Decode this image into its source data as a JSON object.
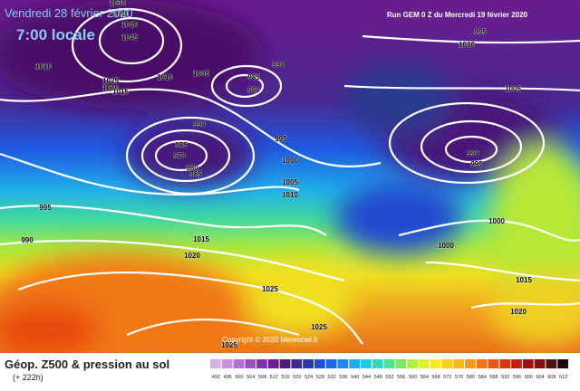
{
  "header": {
    "date": "Vendredi 28 février 2020",
    "time": "7:00 locale",
    "run": "Run GEM 0 Z du Mercredi 19 février 2020"
  },
  "copyright": "Copyright © 2020 Meteociel.fr",
  "caption": {
    "title": "Géop. Z500 & pression au sol",
    "lead": "(+ 222h)"
  },
  "isobar_labels": [
    1030,
    1035,
    1040,
    1045,
    1010,
    1025,
    1020,
    1015,
    1010,
    1005,
    990,
    985,
    980,
    990,
    975,
    970,
    980,
    985,
    995,
    1000,
    1005,
    1010,
    995,
    990,
    1015,
    1020,
    1025,
    1025,
    1025,
    995,
    1000,
    1005,
    990,
    995,
    1000,
    1000,
    1015,
    1020
  ],
  "legend": {
    "labels": [
      492,
      496,
      500,
      504,
      508,
      512,
      516,
      520,
      524,
      528,
      532,
      536,
      540,
      544,
      548,
      552,
      556,
      560,
      564,
      568,
      572,
      576,
      580,
      584,
      588,
      592,
      596,
      600,
      604,
      608,
      612
    ],
    "colors": [
      "#d8b0e8",
      "#c890e0",
      "#b070d0",
      "#9850c0",
      "#8030b0",
      "#6a1f8c",
      "#501878",
      "#3a2a90",
      "#2838a8",
      "#1e50d0",
      "#1e68e8",
      "#2088f0",
      "#20a8f0",
      "#20c8e8",
      "#30d8c0",
      "#50e090",
      "#80e860",
      "#b0f040",
      "#e0f030",
      "#f8e820",
      "#f8d020",
      "#f8b820",
      "#f89820",
      "#f07818",
      "#e85810",
      "#d83810",
      "#c02010",
      "#a01010",
      "#801010",
      "#501010",
      "#200808"
    ]
  }
}
